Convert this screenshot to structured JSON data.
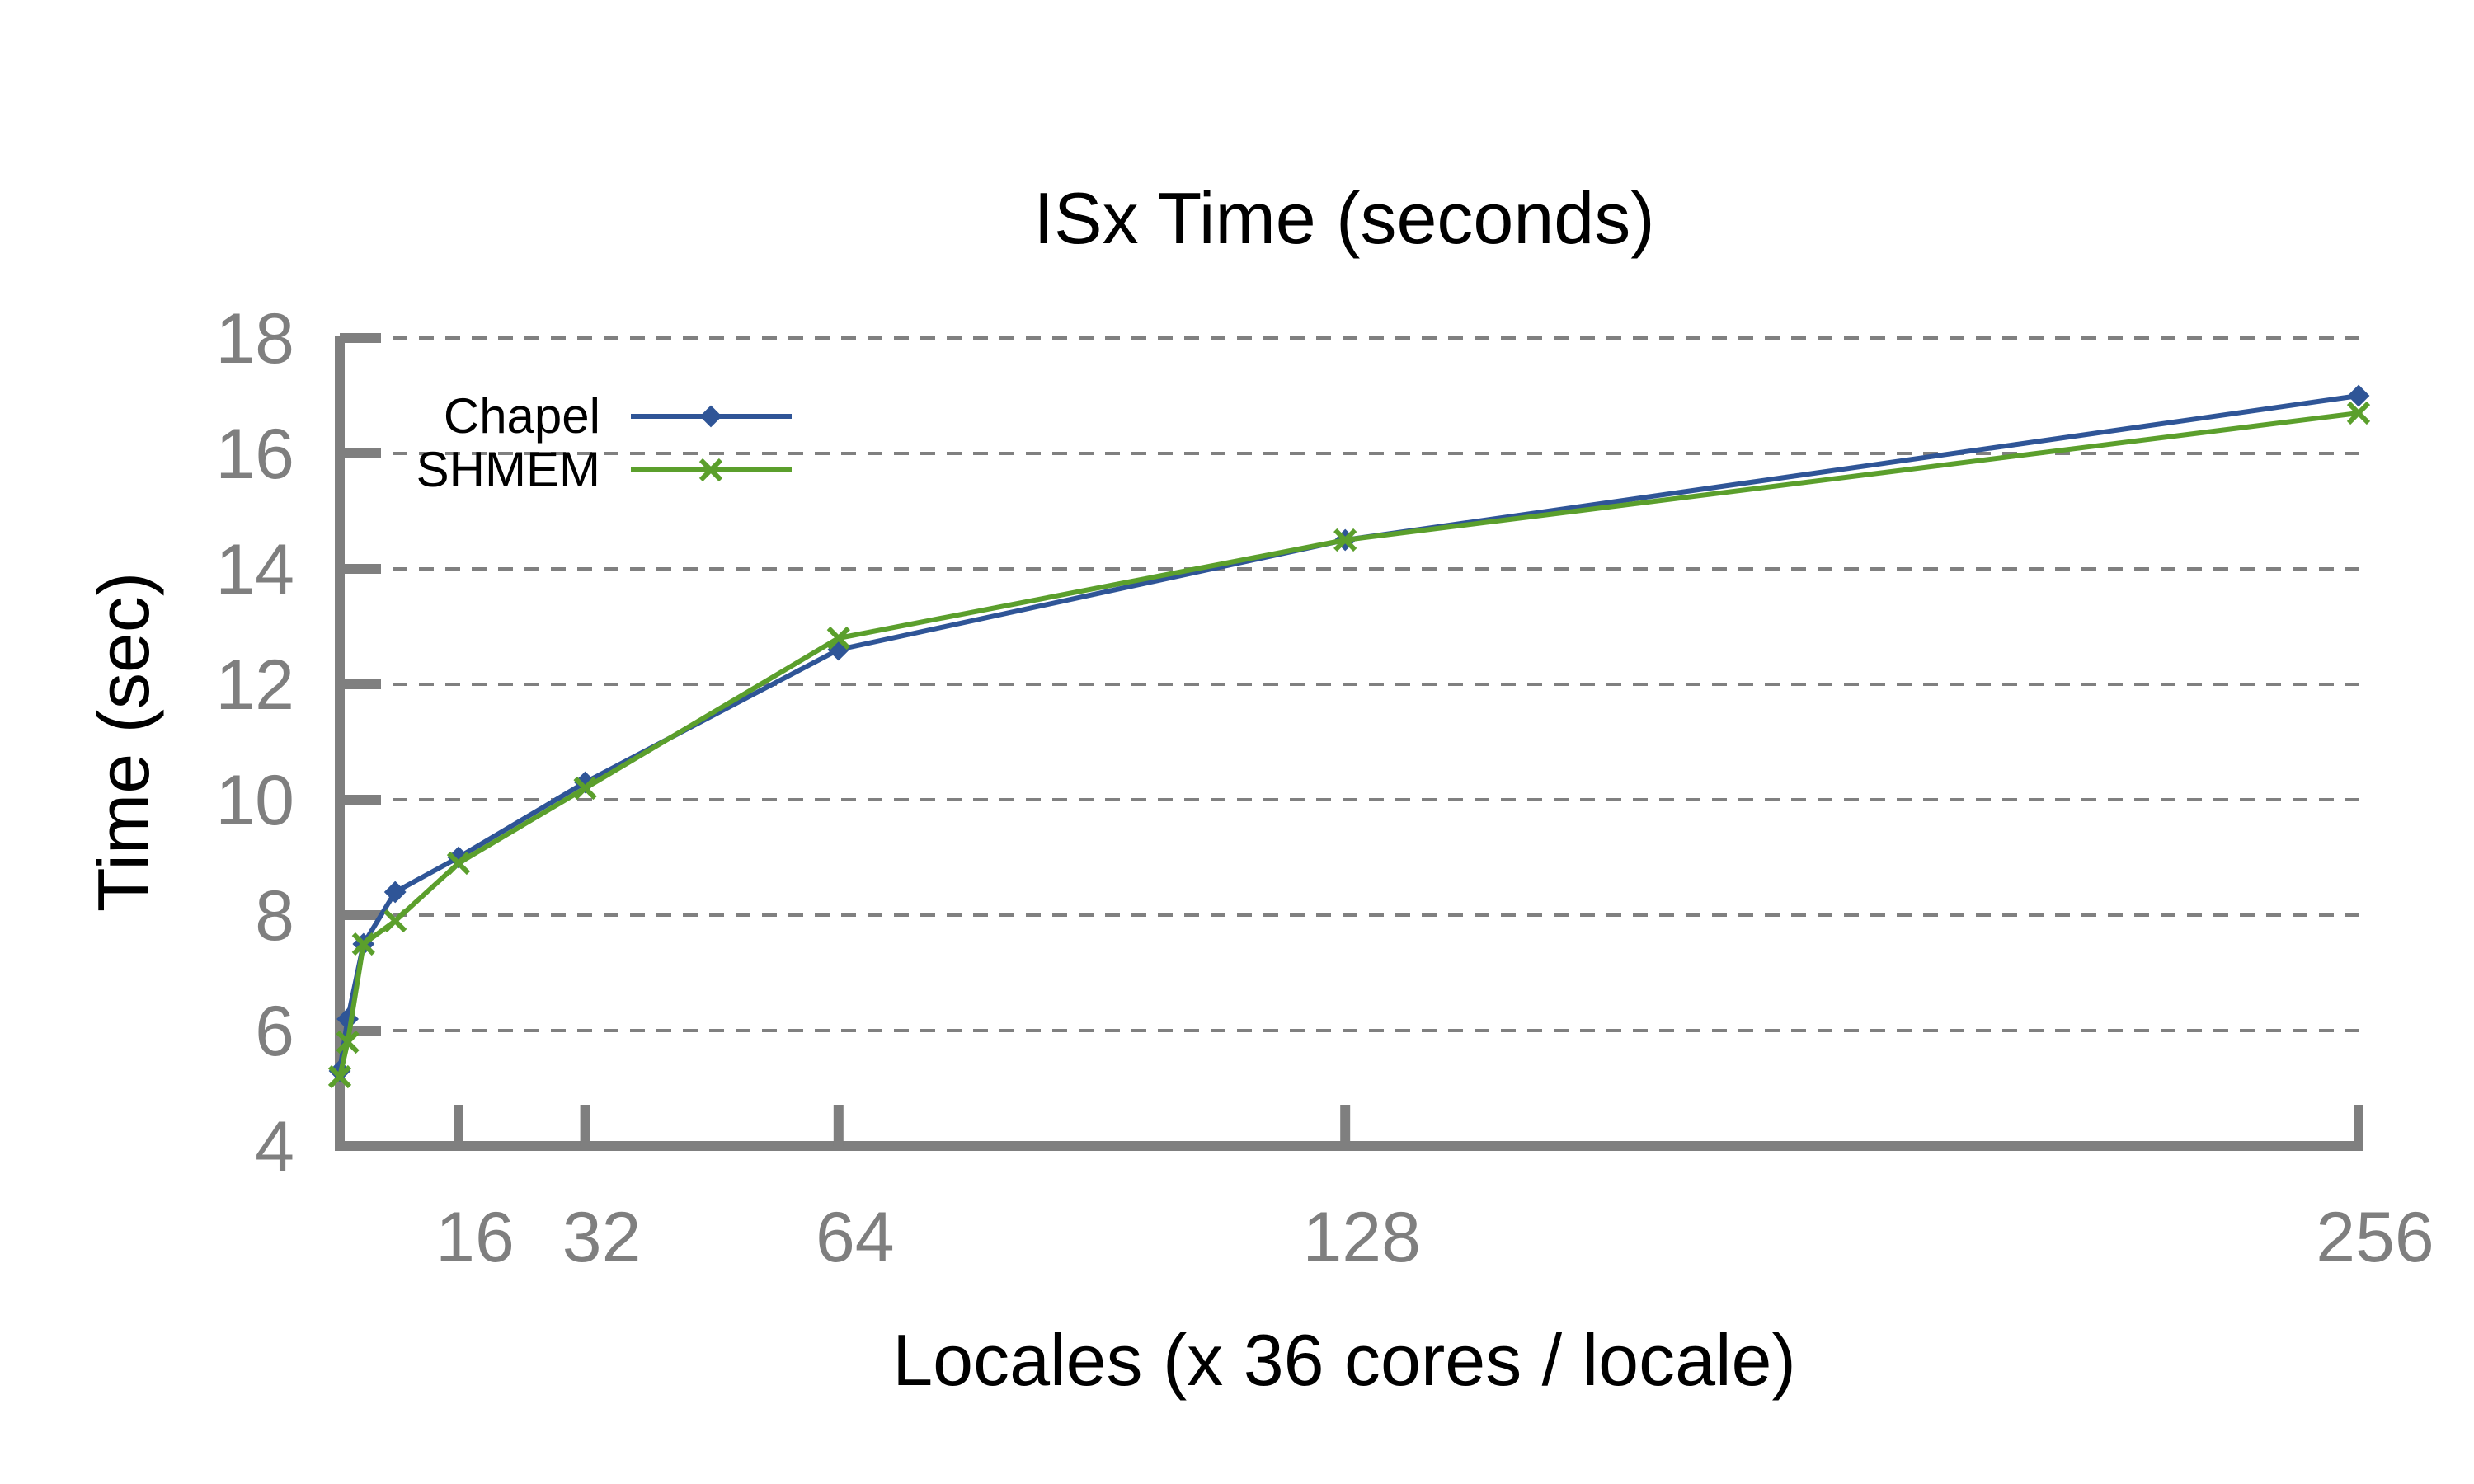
{
  "chart_data": {
    "type": "line",
    "title": "ISx Time (seconds)",
    "xlabel": "Locales (x 36 cores / locale)",
    "ylabel": "Time (sec)",
    "xlim": [
      1,
      256
    ],
    "ylim": [
      4,
      18
    ],
    "x_ticks": [
      16,
      32,
      64,
      128,
      256
    ],
    "x_tick_labels": [
      "16",
      "32",
      "64",
      "128",
      "256"
    ],
    "y_ticks": [
      4,
      6,
      8,
      10,
      12,
      14,
      16,
      18
    ],
    "y_tick_labels": [
      "4",
      "6",
      "8",
      "10",
      "12",
      "14",
      "16",
      "18"
    ],
    "grid": "horizontal dashed",
    "legend_position": "top-left",
    "x": [
      1,
      2,
      4,
      8,
      16,
      32,
      64,
      128,
      256
    ],
    "series": [
      {
        "name": "Chapel",
        "color": "#2f5597",
        "marker": "diamond",
        "values": [
          5.3,
          6.2,
          7.5,
          8.4,
          9.0,
          10.3,
          12.6,
          14.5,
          17.0
        ]
      },
      {
        "name": "SHMEM",
        "color": "#5b9f2c",
        "marker": "x",
        "values": [
          5.2,
          5.8,
          7.5,
          7.9,
          8.9,
          10.2,
          12.8,
          14.5,
          16.7
        ]
      }
    ]
  }
}
